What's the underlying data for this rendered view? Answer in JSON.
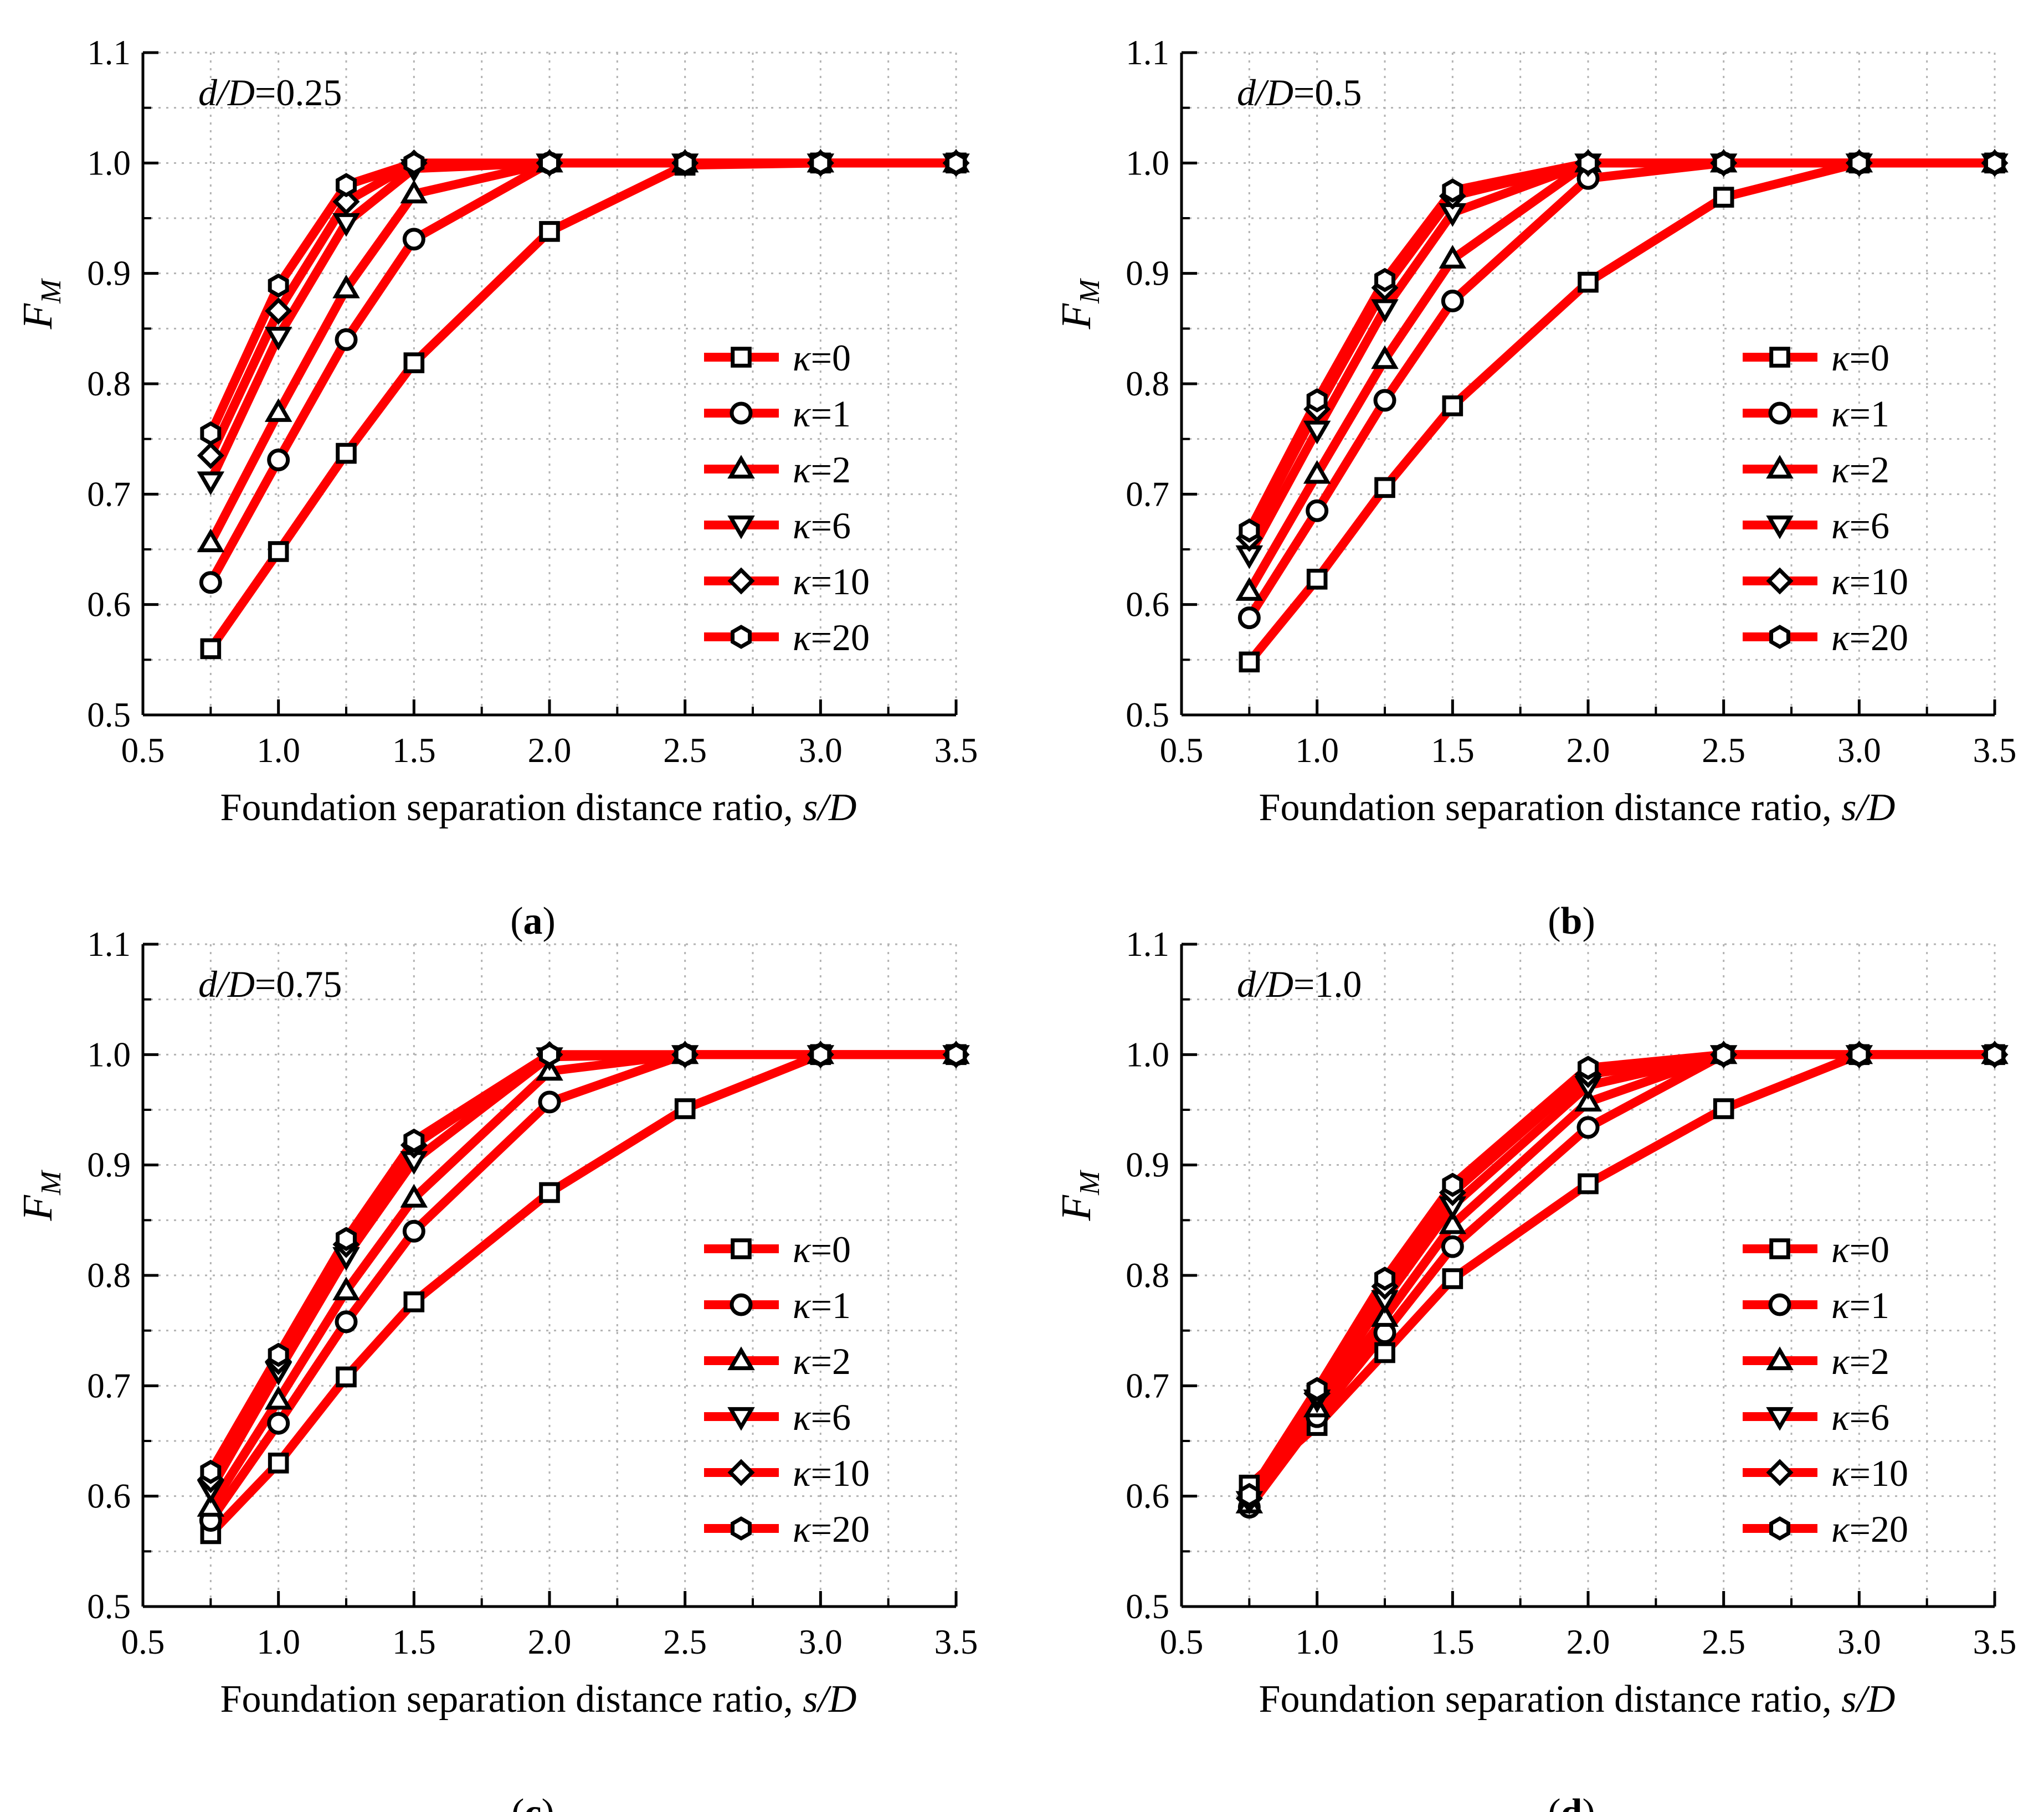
{
  "chart_data": [
    {
      "type": "line",
      "panel_label": "a",
      "annotation": "d/D=0.25",
      "annotation_parts": {
        "italic": "d/D",
        "rest": "=0.25"
      },
      "title": "",
      "xlabel": "Foundation separation distance ratio, s/D",
      "xlabel_parts": {
        "plain": "Foundation separation distance ratio, ",
        "italic": "s/D"
      },
      "ylabel": "F_M",
      "ylabel_parts": {
        "main": "F",
        "sub": "M"
      },
      "xlim": [
        0.5,
        3.5
      ],
      "ylim": [
        0.5,
        1.1
      ],
      "xticks": [
        "0.5",
        "1.0",
        "1.5",
        "2.0",
        "2.5",
        "3.0",
        "3.5"
      ],
      "yticks": [
        "0.5",
        "0.6",
        "0.7",
        "0.8",
        "0.9",
        "1.0",
        "1.1"
      ],
      "grid": true,
      "legend_position": "right-center",
      "x": [
        0.75,
        1.0,
        1.25,
        1.5,
        2.0,
        2.5,
        3.0,
        3.5
      ],
      "series": [
        {
          "name": "κ=0",
          "marker": "square",
          "values": [
            0.56,
            0.648,
            0.737,
            0.819,
            0.938,
            0.998,
            1.0,
            1.0
          ]
        },
        {
          "name": "κ=1",
          "marker": "circle",
          "values": [
            0.62,
            0.731,
            0.84,
            0.931,
            1.0,
            1.0,
            1.0,
            1.0
          ]
        },
        {
          "name": "κ=2",
          "marker": "triangle-up",
          "values": [
            0.656,
            0.774,
            0.886,
            0.972,
            1.0,
            1.0,
            1.0,
            1.0
          ]
        },
        {
          "name": "κ=6",
          "marker": "triangle-down",
          "values": [
            0.712,
            0.843,
            0.946,
            0.995,
            1.0,
            1.0,
            1.0,
            1.0
          ]
        },
        {
          "name": "κ=10",
          "marker": "diamond",
          "values": [
            0.735,
            0.866,
            0.965,
            1.0,
            1.0,
            1.0,
            1.0,
            1.0
          ]
        },
        {
          "name": "κ=20",
          "marker": "hexagon",
          "values": [
            0.755,
            0.889,
            0.98,
            1.0,
            1.0,
            1.0,
            1.0,
            1.0
          ]
        }
      ]
    },
    {
      "type": "line",
      "panel_label": "b",
      "annotation": "d/D=0.5",
      "annotation_parts": {
        "italic": "d/D",
        "rest": "=0.5"
      },
      "title": "",
      "xlabel": "Foundation separation distance ratio, s/D",
      "xlabel_parts": {
        "plain": "Foundation separation distance ratio, ",
        "italic": "s/D"
      },
      "ylabel": "F_M",
      "ylabel_parts": {
        "main": "F",
        "sub": "M"
      },
      "xlim": [
        0.5,
        3.5
      ],
      "ylim": [
        0.5,
        1.1
      ],
      "xticks": [
        "0.5",
        "1.0",
        "1.5",
        "2.0",
        "2.5",
        "3.0",
        "3.5"
      ],
      "yticks": [
        "0.5",
        "0.6",
        "0.7",
        "0.8",
        "0.9",
        "1.0",
        "1.1"
      ],
      "grid": true,
      "legend_position": "right-center",
      "x": [
        0.75,
        1.0,
        1.25,
        1.5,
        2.0,
        2.5,
        3.0,
        3.5
      ],
      "series": [
        {
          "name": "κ=0",
          "marker": "square",
          "values": [
            0.548,
            0.623,
            0.706,
            0.78,
            0.892,
            0.969,
            1.0,
            1.0
          ]
        },
        {
          "name": "κ=1",
          "marker": "circle",
          "values": [
            0.588,
            0.685,
            0.785,
            0.875,
            0.986,
            1.0,
            1.0,
            1.0
          ]
        },
        {
          "name": "κ=2",
          "marker": "triangle-up",
          "values": [
            0.612,
            0.718,
            0.822,
            0.913,
            1.0,
            1.0,
            1.0,
            1.0
          ]
        },
        {
          "name": "κ=6",
          "marker": "triangle-down",
          "values": [
            0.645,
            0.758,
            0.868,
            0.955,
            1.0,
            1.0,
            1.0,
            1.0
          ]
        },
        {
          "name": "κ=10",
          "marker": "diamond",
          "values": [
            0.66,
            0.777,
            0.887,
            0.97,
            1.0,
            1.0,
            1.0,
            1.0
          ]
        },
        {
          "name": "κ=20",
          "marker": "hexagon",
          "values": [
            0.667,
            0.785,
            0.894,
            0.975,
            1.0,
            1.0,
            1.0,
            1.0
          ]
        }
      ]
    },
    {
      "type": "line",
      "panel_label": "c",
      "annotation": "d/D=0.75",
      "annotation_parts": {
        "italic": "d/D",
        "rest": "=0.75"
      },
      "title": "",
      "xlabel": "Foundation separation distance ratio, s/D",
      "xlabel_parts": {
        "plain": "Foundation separation distance ratio, ",
        "italic": "s/D"
      },
      "ylabel": "F_M",
      "ylabel_parts": {
        "main": "F",
        "sub": "M"
      },
      "xlim": [
        0.5,
        3.5
      ],
      "ylim": [
        0.5,
        1.1
      ],
      "xticks": [
        "0.5",
        "1.0",
        "1.5",
        "2.0",
        "2.5",
        "3.0",
        "3.5"
      ],
      "yticks": [
        "0.5",
        "0.6",
        "0.7",
        "0.8",
        "0.9",
        "1.0",
        "1.1"
      ],
      "grid": true,
      "legend_position": "right-center",
      "x": [
        0.75,
        1.0,
        1.25,
        1.5,
        2.0,
        2.5,
        3.0,
        3.5
      ],
      "series": [
        {
          "name": "κ=0",
          "marker": "square",
          "values": [
            0.566,
            0.63,
            0.708,
            0.776,
            0.875,
            0.951,
            1.0,
            1.0
          ]
        },
        {
          "name": "κ=1",
          "marker": "circle",
          "values": [
            0.578,
            0.666,
            0.758,
            0.84,
            0.957,
            1.0,
            1.0,
            1.0
          ]
        },
        {
          "name": "κ=2",
          "marker": "triangle-up",
          "values": [
            0.59,
            0.687,
            0.786,
            0.87,
            0.985,
            1.0,
            1.0,
            1.0
          ]
        },
        {
          "name": "κ=6",
          "marker": "triangle-down",
          "values": [
            0.606,
            0.713,
            0.817,
            0.904,
            0.998,
            1.0,
            1.0,
            1.0
          ]
        },
        {
          "name": "κ=10",
          "marker": "diamond",
          "values": [
            0.615,
            0.722,
            0.828,
            0.918,
            1.0,
            1.0,
            1.0,
            1.0
          ]
        },
        {
          "name": "κ=20",
          "marker": "hexagon",
          "values": [
            0.622,
            0.728,
            0.833,
            0.922,
            1.0,
            1.0,
            1.0,
            1.0
          ]
        }
      ]
    },
    {
      "type": "line",
      "panel_label": "d",
      "annotation": "d/D=1.0",
      "annotation_parts": {
        "italic": "d/D",
        "rest": "=1.0"
      },
      "title": "",
      "xlabel": "Foundation separation distance ratio, s/D",
      "xlabel_parts": {
        "plain": "Foundation separation distance ratio, ",
        "italic": "s/D"
      },
      "ylabel": "F_M",
      "ylabel_parts": {
        "main": "F",
        "sub": "M"
      },
      "xlim": [
        0.5,
        3.5
      ],
      "ylim": [
        0.5,
        1.1
      ],
      "xticks": [
        "0.5",
        "1.0",
        "1.5",
        "2.0",
        "2.5",
        "3.0",
        "3.5"
      ],
      "yticks": [
        "0.5",
        "0.6",
        "0.7",
        "0.8",
        "0.9",
        "1.0",
        "1.1"
      ],
      "grid": true,
      "legend_position": "right-center",
      "x": [
        0.75,
        1.0,
        1.25,
        1.5,
        2.0,
        2.5,
        3.0,
        3.5
      ],
      "series": [
        {
          "name": "κ=0",
          "marker": "square",
          "values": [
            0.61,
            0.664,
            0.73,
            0.797,
            0.883,
            0.951,
            1.0,
            1.0
          ]
        },
        {
          "name": "κ=1",
          "marker": "circle",
          "values": [
            0.59,
            0.672,
            0.748,
            0.826,
            0.934,
            1.0,
            1.0,
            1.0
          ]
        },
        {
          "name": "κ=2",
          "marker": "triangle-up",
          "values": [
            0.593,
            0.68,
            0.762,
            0.846,
            0.957,
            1.0,
            1.0,
            1.0
          ]
        },
        {
          "name": "κ=6",
          "marker": "triangle-down",
          "values": [
            0.596,
            0.688,
            0.778,
            0.863,
            0.972,
            1.0,
            1.0,
            1.0
          ]
        },
        {
          "name": "κ=10",
          "marker": "diamond",
          "values": [
            0.598,
            0.693,
            0.79,
            0.875,
            0.982,
            1.0,
            1.0,
            1.0
          ]
        },
        {
          "name": "κ=20",
          "marker": "hexagon",
          "values": [
            0.601,
            0.697,
            0.797,
            0.882,
            0.988,
            1.0,
            1.0,
            1.0
          ]
        }
      ]
    }
  ],
  "colors": {
    "line": "#ff0000",
    "marker_stroke": "#000000",
    "marker_fill": "#ffffff",
    "grid": "#b3b3b3",
    "axis": "#000000"
  }
}
